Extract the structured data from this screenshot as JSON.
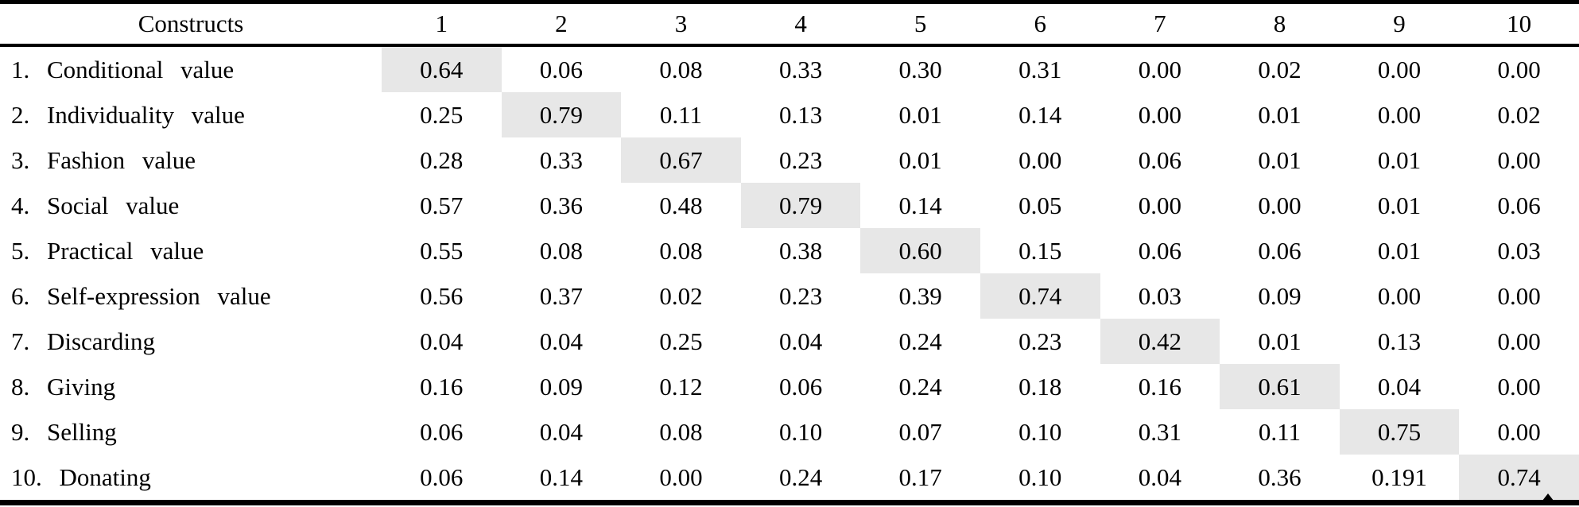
{
  "table": {
    "header": {
      "construct_col": "Constructs",
      "numeric_cols": [
        "1",
        "2",
        "3",
        "4",
        "5",
        "6",
        "7",
        "8",
        "9",
        "10"
      ]
    },
    "rows": [
      {
        "label": "1. Conditional value",
        "diagonal_index": 0,
        "values": [
          "0.64",
          "0.06",
          "0.08",
          "0.33",
          "0.30",
          "0.31",
          "0.00",
          "0.02",
          "0.00",
          "0.00"
        ]
      },
      {
        "label": "2. Individuality value",
        "diagonal_index": 1,
        "values": [
          "0.25",
          "0.79",
          "0.11",
          "0.13",
          "0.01",
          "0.14",
          "0.00",
          "0.01",
          "0.00",
          "0.02"
        ]
      },
      {
        "label": "3. Fashion value",
        "diagonal_index": 2,
        "values": [
          "0.28",
          "0.33",
          "0.67",
          "0.23",
          "0.01",
          "0.00",
          "0.06",
          "0.01",
          "0.01",
          "0.00"
        ]
      },
      {
        "label": "4. Social value",
        "diagonal_index": 3,
        "values": [
          "0.57",
          "0.36",
          "0.48",
          "0.79",
          "0.14",
          "0.05",
          "0.00",
          "0.00",
          "0.01",
          "0.06"
        ]
      },
      {
        "label": "5. Practical value",
        "diagonal_index": 4,
        "values": [
          "0.55",
          "0.08",
          "0.08",
          "0.38",
          "0.60",
          "0.15",
          "0.06",
          "0.06",
          "0.01",
          "0.03"
        ]
      },
      {
        "label": "6. Self-expression value",
        "diagonal_index": 5,
        "values": [
          "0.56",
          "0.37",
          "0.02",
          "0.23",
          "0.39",
          "0.74",
          "0.03",
          "0.09",
          "0.00",
          "0.00"
        ]
      },
      {
        "label": "7. Discarding",
        "diagonal_index": 6,
        "values": [
          "0.04",
          "0.04",
          "0.25",
          "0.04",
          "0.24",
          "0.23",
          "0.42",
          "0.01",
          "0.13",
          "0.00"
        ]
      },
      {
        "label": "8. Giving",
        "diagonal_index": 7,
        "values": [
          "0.16",
          "0.09",
          "0.12",
          "0.06",
          "0.24",
          "0.18",
          "0.16",
          "0.61",
          "0.04",
          "0.00"
        ]
      },
      {
        "label": "9. Selling",
        "diagonal_index": 8,
        "values": [
          "0.06",
          "0.04",
          "0.08",
          "0.10",
          "0.07",
          "0.10",
          "0.31",
          "0.11",
          "0.75",
          "0.00"
        ]
      },
      {
        "label": "10. Donating",
        "diagonal_index": 9,
        "values": [
          "0.06",
          "0.14",
          "0.00",
          "0.24",
          "0.17",
          "0.10",
          "0.04",
          "0.36",
          "0.191",
          "0.74"
        ]
      }
    ],
    "diagonal_highlight_color": "#e7e7e7",
    "rule_color": "#000000"
  }
}
